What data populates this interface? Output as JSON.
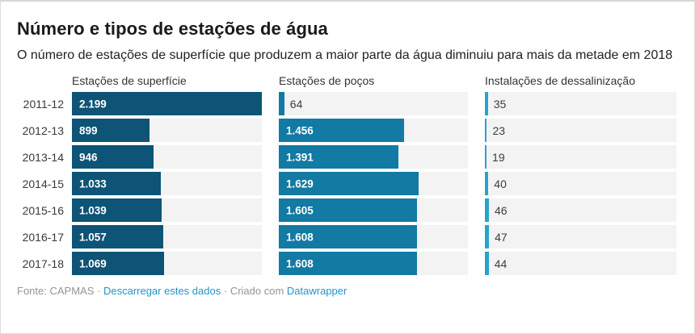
{
  "header": {
    "title": "Número e tipos de estações de água",
    "subtitle": "O número de estações de superfície que produzem a maior parte da água diminuiu para mais da metade em 2018"
  },
  "chart_data": {
    "type": "bar",
    "layout": "split-bar-columns",
    "categories": [
      "2011-12",
      "2012-13",
      "2013-14",
      "2014-15",
      "2015-16",
      "2016-17",
      "2017-18"
    ],
    "series": [
      {
        "name": "Estações de superfície",
        "values": [
          2199,
          899,
          946,
          1033,
          1039,
          1057,
          1069
        ],
        "labels": [
          "2.199",
          "899",
          "946",
          "1.033",
          "1.039",
          "1.057",
          "1.069"
        ],
        "color": "#0d5476"
      },
      {
        "name": "Estações de poços",
        "values": [
          64,
          1456,
          1391,
          1629,
          1605,
          1608,
          1608
        ],
        "labels": [
          "64",
          "1.456",
          "1.391",
          "1.629",
          "1.605",
          "1.608",
          "1.608"
        ],
        "color": "#127aa3"
      },
      {
        "name": "Instalações de dessalinização",
        "values": [
          35,
          23,
          19,
          40,
          46,
          47,
          44
        ],
        "labels": [
          "35",
          "23",
          "19",
          "40",
          "46",
          "47",
          "44"
        ],
        "color": "#29a3cb"
      }
    ],
    "max_scale": 2199,
    "track_color": "#f3f3f3",
    "grid": false,
    "legend_position": "column-headers"
  },
  "footer": {
    "source_text": "Fonte: CAPMAS",
    "separator": "·",
    "download_link": "Descarregar estes dados",
    "created_with": "Criado com",
    "tool_link": "Datawrapper",
    "link_color": "#2095c9"
  }
}
